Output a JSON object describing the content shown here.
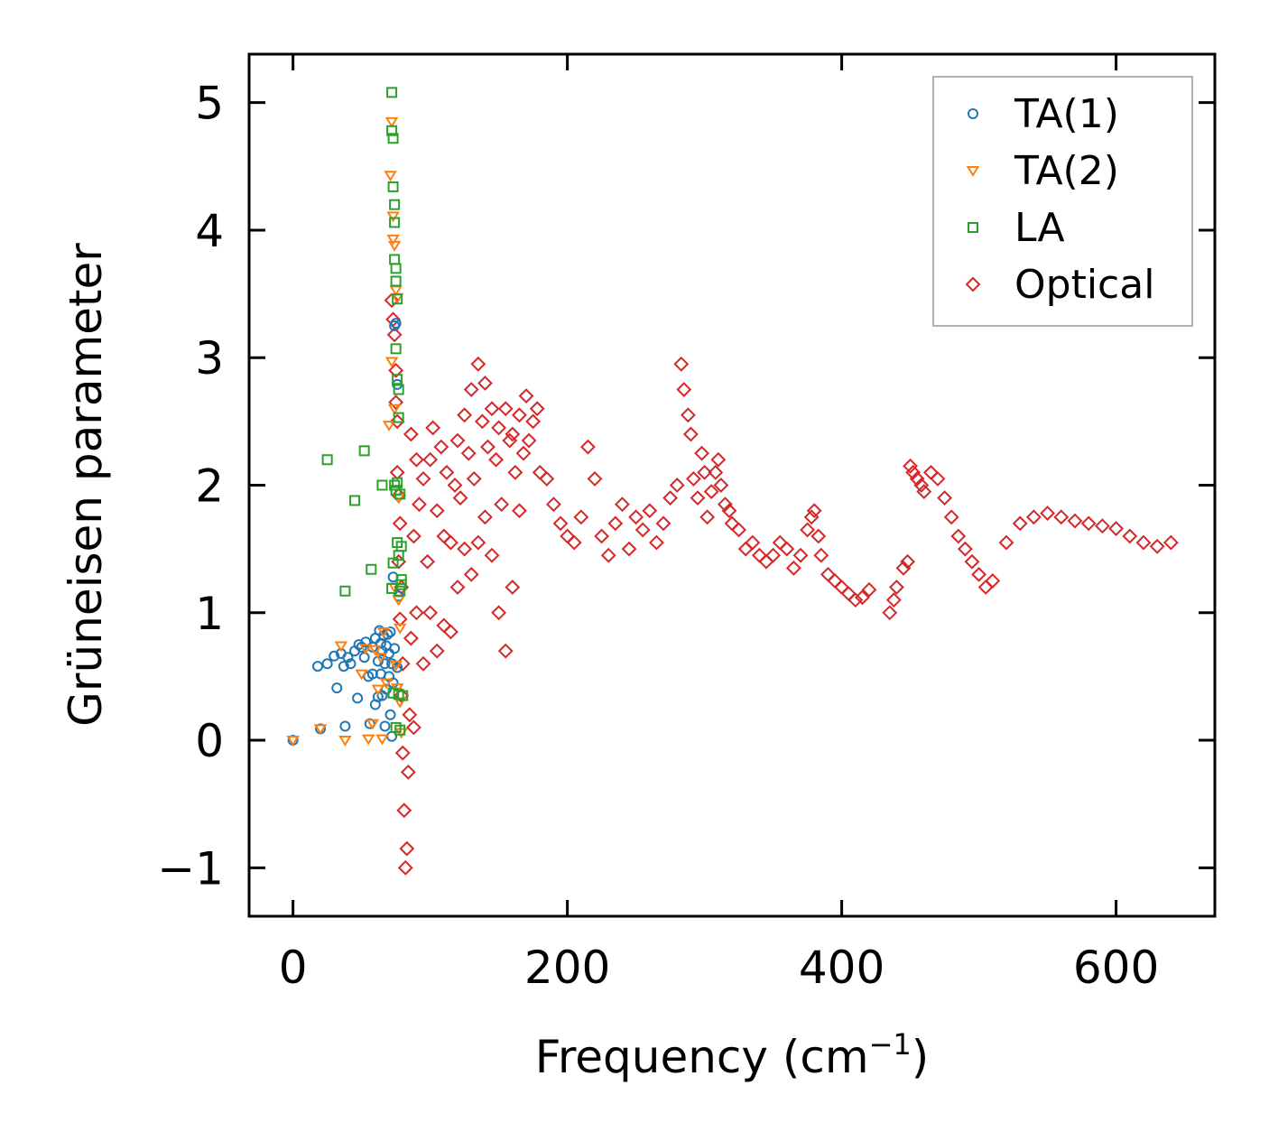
{
  "chart_data": {
    "type": "scatter",
    "title": "",
    "xlabel": "Frequency (cm",
    "xlabel_sup": "−1",
    "xlabel_close": ")",
    "ylabel": "Grüneisen parameter",
    "xlim": [
      -32,
      672
    ],
    "ylim": [
      -1.38,
      5.38
    ],
    "xticks": [
      0,
      200,
      400,
      600
    ],
    "xtick_labels": [
      "0",
      "200",
      "400",
      "600"
    ],
    "yticks": [
      -1,
      0,
      1,
      2,
      3,
      4,
      5
    ],
    "ytick_labels": [
      "−1",
      "0",
      "1",
      "2",
      "3",
      "4",
      "5"
    ],
    "grid": false,
    "legend_position": "top-right",
    "series": [
      {
        "name": "TA(1)",
        "marker": "circle",
        "color": "#1f77b4",
        "x": [
          0,
          18,
          20,
          25,
          30,
          32,
          35,
          37,
          38,
          40,
          42,
          45,
          47,
          48,
          50,
          52,
          53,
          55,
          56,
          58,
          58,
          60,
          60,
          62,
          62,
          63,
          64,
          64,
          65,
          65,
          66,
          67,
          67,
          68,
          68,
          69,
          70,
          70,
          71,
          71,
          72,
          72,
          73,
          73,
          74,
          74,
          75,
          76,
          76,
          77
        ],
        "y": [
          0.0,
          0.58,
          0.09,
          0.6,
          0.66,
          0.41,
          0.68,
          0.58,
          0.11,
          0.65,
          0.6,
          0.7,
          0.33,
          0.75,
          0.73,
          0.65,
          0.77,
          0.5,
          0.13,
          0.52,
          0.73,
          0.28,
          0.8,
          0.62,
          0.34,
          0.86,
          0.76,
          0.52,
          0.7,
          0.35,
          0.82,
          0.6,
          0.11,
          0.74,
          0.4,
          0.83,
          0.5,
          0.68,
          0.2,
          0.85,
          0.6,
          0.03,
          0.45,
          1.28,
          0.72,
          3.25,
          3.27,
          2.79,
          0.57,
          1.13
        ]
      },
      {
        "name": "TA(2)",
        "marker": "triangle-down",
        "color": "#ff7f0e",
        "x": [
          0,
          20,
          35,
          38,
          50,
          53,
          55,
          58,
          60,
          62,
          64,
          65,
          66,
          68,
          70,
          71,
          72,
          72,
          73,
          73,
          74,
          74,
          74,
          75,
          75,
          76,
          76,
          77,
          77,
          78,
          78,
          79
        ],
        "y": [
          0.0,
          0.09,
          0.74,
          0.0,
          0.52,
          0.72,
          0.01,
          0.13,
          0.71,
          0.4,
          0.65,
          0.01,
          0.85,
          0.45,
          2.47,
          4.43,
          4.85,
          2.97,
          3.93,
          4.11,
          3.88,
          2.6,
          1.2,
          3.53,
          0.59,
          3.47,
          0.41,
          1.9,
          1.1,
          0.88,
          0.3,
          0.06
        ]
      },
      {
        "name": "LA",
        "marker": "square",
        "color": "#2ca02c",
        "x": [
          25,
          38,
          45,
          52,
          57,
          65,
          72,
          72,
          72,
          73,
          73,
          73,
          73,
          74,
          74,
          74,
          74,
          75,
          75,
          75,
          75,
          75,
          76,
          76,
          76,
          76,
          77,
          77,
          77,
          77,
          78,
          78,
          78,
          79,
          79,
          79,
          80
        ],
        "y": [
          2.2,
          1.17,
          1.88,
          2.27,
          1.34,
          2.0,
          5.08,
          4.78,
          1.19,
          4.72,
          4.34,
          1.39,
          0.37,
          4.2,
          4.06,
          3.77,
          2.0,
          3.7,
          3.6,
          3.07,
          1.96,
          0.1,
          3.46,
          2.83,
          2.02,
          1.55,
          2.75,
          2.53,
          1.45,
          0.36,
          1.93,
          1.17,
          0.08,
          1.52,
          1.26,
          1.22,
          0.35
        ]
      },
      {
        "name": "Optical",
        "marker": "diamond",
        "color": "#d62728",
        "x": [
          72,
          73,
          74,
          75,
          75,
          76,
          76,
          77,
          77,
          78,
          78,
          79,
          79,
          80,
          80,
          81,
          82,
          83,
          84,
          85,
          86,
          86,
          88,
          88,
          90,
          90,
          92,
          95,
          95,
          98,
          100,
          100,
          102,
          105,
          105,
          108,
          110,
          110,
          112,
          115,
          115,
          118,
          120,
          120,
          122,
          125,
          125,
          128,
          130,
          130,
          132,
          135,
          135,
          138,
          140,
          140,
          142,
          145,
          145,
          148,
          150,
          150,
          152,
          155,
          155,
          158,
          160,
          160,
          162,
          165,
          165,
          168,
          170,
          172,
          175,
          178,
          180,
          185,
          190,
          195,
          200,
          205,
          210,
          215,
          220,
          225,
          230,
          235,
          240,
          245,
          250,
          255,
          260,
          265,
          270,
          275,
          280,
          283,
          285,
          288,
          290,
          292,
          295,
          298,
          300,
          302,
          305,
          308,
          310,
          312,
          315,
          318,
          320,
          325,
          330,
          335,
          340,
          345,
          350,
          355,
          360,
          365,
          370,
          375,
          378,
          380,
          383,
          385,
          390,
          395,
          400,
          405,
          410,
          415,
          420,
          435,
          438,
          440,
          445,
          448,
          450,
          452,
          455,
          458,
          460,
          465,
          470,
          475,
          480,
          485,
          490,
          495,
          500,
          505,
          510,
          520,
          530,
          540,
          550,
          560,
          570,
          580,
          590,
          600,
          610,
          620,
          630,
          640
        ],
        "y": [
          3.45,
          3.3,
          3.18,
          2.9,
          2.65,
          2.5,
          2.1,
          1.92,
          1.4,
          1.7,
          0.95,
          1.2,
          0.35,
          0.6,
          -0.1,
          -0.55,
          -1.0,
          -0.85,
          -0.25,
          0.2,
          0.8,
          2.4,
          1.6,
          0.1,
          2.2,
          1.0,
          1.85,
          2.05,
          0.6,
          1.4,
          2.2,
          1.0,
          2.45,
          1.8,
          0.7,
          2.3,
          1.6,
          0.9,
          2.1,
          1.55,
          0.85,
          2.0,
          2.35,
          1.2,
          1.9,
          2.55,
          1.5,
          2.25,
          2.75,
          1.3,
          2.05,
          2.95,
          1.55,
          2.5,
          2.8,
          1.75,
          2.3,
          2.6,
          1.45,
          2.2,
          2.45,
          1.0,
          1.85,
          2.6,
          0.7,
          2.35,
          2.4,
          1.2,
          2.1,
          2.55,
          1.8,
          2.25,
          2.7,
          2.35,
          2.5,
          2.6,
          2.1,
          2.05,
          1.85,
          1.7,
          1.6,
          1.55,
          1.75,
          2.3,
          2.05,
          1.6,
          1.45,
          1.7,
          1.85,
          1.5,
          1.75,
          1.65,
          1.8,
          1.55,
          1.7,
          1.9,
          2.0,
          2.95,
          2.75,
          2.55,
          2.4,
          2.05,
          1.9,
          2.25,
          2.1,
          1.75,
          1.95,
          2.1,
          2.2,
          2.0,
          1.85,
          1.8,
          1.7,
          1.65,
          1.5,
          1.55,
          1.45,
          1.4,
          1.45,
          1.55,
          1.5,
          1.35,
          1.45,
          1.65,
          1.75,
          1.8,
          1.6,
          1.45,
          1.3,
          1.25,
          1.2,
          1.15,
          1.1,
          1.12,
          1.18,
          1.0,
          1.1,
          1.2,
          1.35,
          1.4,
          2.15,
          2.1,
          2.05,
          2.0,
          1.95,
          2.1,
          2.05,
          1.9,
          1.75,
          1.6,
          1.5,
          1.4,
          1.3,
          1.2,
          1.25,
          1.55,
          1.7,
          1.75,
          1.78,
          1.75,
          1.72,
          1.7,
          1.68,
          1.66,
          1.6,
          1.55,
          1.52,
          1.55
        ]
      }
    ]
  }
}
